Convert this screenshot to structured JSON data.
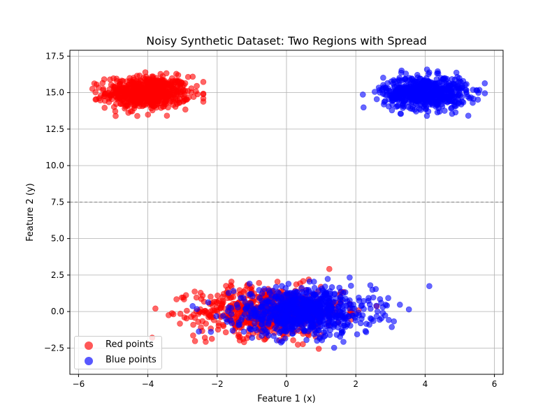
{
  "chart_data": {
    "type": "scatter",
    "title": "Noisy Synthetic Dataset: Two Regions with Spread",
    "xlabel": "Feature 1 (x)",
    "ylabel": "Feature 2 (y)",
    "xlim": [
      -6.25,
      6.25
    ],
    "ylim": [
      -4.3,
      17.9
    ],
    "xticks": [
      -6,
      -4,
      -2,
      0,
      2,
      4,
      6
    ],
    "xtick_labels": [
      "−6",
      "−4",
      "−2",
      "0",
      "2",
      "4",
      "6"
    ],
    "yticks": [
      -2.5,
      0.0,
      2.5,
      5.0,
      7.5,
      10.0,
      12.5,
      15.0,
      17.5
    ],
    "ytick_labels": [
      "−2.5",
      "0.0",
      "2.5",
      "5.0",
      "7.5",
      "10.0",
      "12.5",
      "15.0",
      "17.5"
    ],
    "grid": true,
    "legend_position": "bottom-left",
    "reference_line": {
      "y": 7.5,
      "style": "dashed",
      "color": "#808080"
    },
    "series": [
      {
        "name": "Red points",
        "color": "#ff0000",
        "clusters": [
          {
            "cx": -4.0,
            "cy": 15.0,
            "sx": 0.6,
            "sy": 0.55,
            "n": 650,
            "xrange": [
              -5.6,
              -2.4
            ],
            "yrange": [
              13.4,
              17.0
            ]
          },
          {
            "cx": -0.5,
            "cy": 0.0,
            "sx": 1.05,
            "sy": 0.85,
            "n": 700,
            "xrange": [
              -4.6,
              2.6
            ],
            "yrange": [
              -3.4,
              3.4
            ]
          }
        ]
      },
      {
        "name": "Blue points",
        "color": "#0000ff",
        "clusters": [
          {
            "cx": 4.0,
            "cy": 15.0,
            "sx": 0.6,
            "sy": 0.55,
            "n": 650,
            "xrange": [
              2.0,
              5.8
            ],
            "yrange": [
              13.2,
              16.6
            ]
          },
          {
            "cx": 0.5,
            "cy": 0.0,
            "sx": 1.0,
            "sy": 0.8,
            "n": 800,
            "xrange": [
              -3.5,
              4.6
            ],
            "yrange": [
              -3.0,
              4.5
            ]
          }
        ]
      }
    ]
  }
}
